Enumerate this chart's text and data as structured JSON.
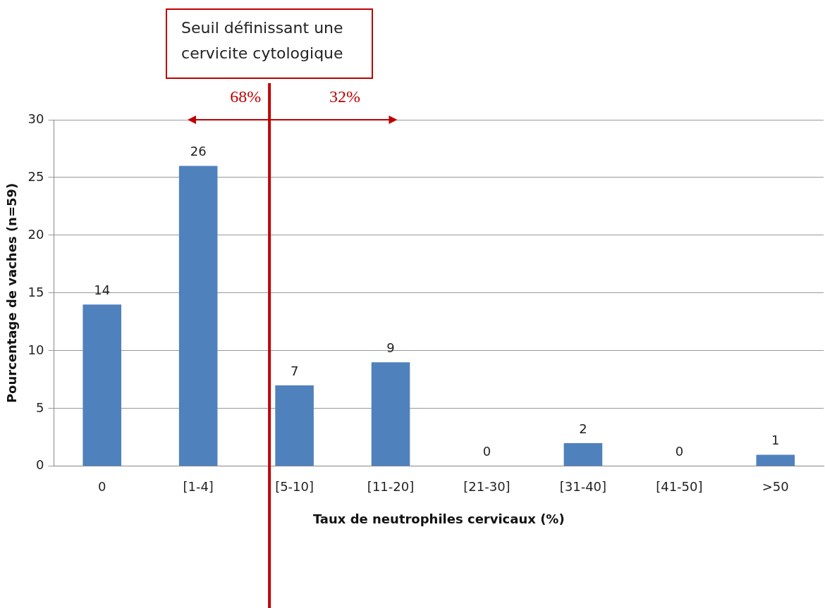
{
  "chart_data": {
    "type": "bar",
    "categories": [
      "0",
      "[1-4]",
      "[5-10]",
      "[11-20]",
      "[21-30]",
      "[31-40]",
      "[41-50]",
      ">50"
    ],
    "values": [
      14,
      26,
      7,
      9,
      0,
      2,
      0,
      1
    ],
    "color": "#4f81bd",
    "xlabel": "Taux de neutrophiles cervicaux (%)",
    "ylabel": "Pourcentage de vaches (n=59)",
    "ylim": [
      0,
      30
    ],
    "yticks": [
      0,
      5,
      10,
      15,
      20,
      25,
      30
    ],
    "grid": "y",
    "legend": false,
    "data_labels": true,
    "ref_lines": [
      {
        "axis": "x",
        "value": "[5-10]",
        "label": "Seuil définissant une cervicite cytologique",
        "color": "#c00000"
      }
    ],
    "annotations": [
      "68%",
      "32%"
    ]
  }
}
